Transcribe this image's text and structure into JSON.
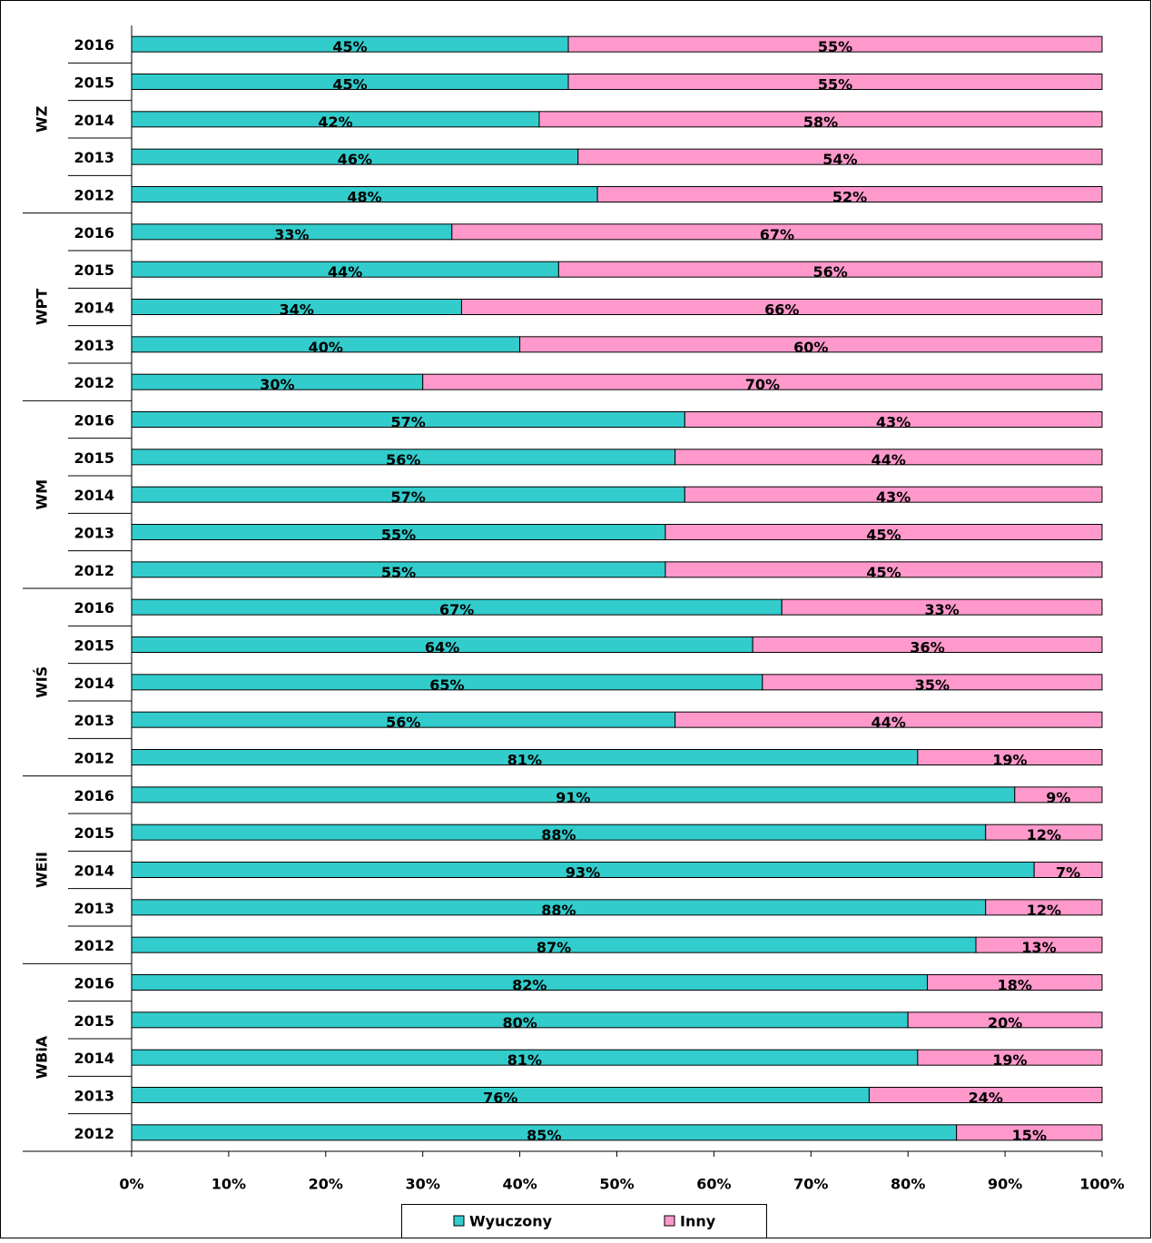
{
  "chart_data": {
    "type": "stacked-barh",
    "groups": [
      "WZ",
      "WPT",
      "WM",
      "WIŚ",
      "WEiI",
      "WBiA"
    ],
    "categories": [
      "2016",
      "2015",
      "2014",
      "2013",
      "2012",
      "2016",
      "2015",
      "2014",
      "2013",
      "2012",
      "2016",
      "2015",
      "2014",
      "2013",
      "2012",
      "2016",
      "2015",
      "2014",
      "2013",
      "2012",
      "2016",
      "2015",
      "2014",
      "2013",
      "2012",
      "2016",
      "2015",
      "2014",
      "2013",
      "2012"
    ],
    "series": [
      {
        "name": "Wyuczony",
        "color": "#33CCCC",
        "values": [
          45,
          45,
          42,
          46,
          48,
          33,
          44,
          34,
          40,
          30,
          57,
          56,
          57,
          55,
          55,
          67,
          64,
          65,
          56,
          81,
          91,
          88,
          93,
          88,
          87,
          82,
          80,
          81,
          76,
          85
        ],
        "value_labels": [
          "45%",
          "45%",
          "42%",
          "46%",
          "48%",
          "33%",
          "44%",
          "34%",
          "40%",
          "30%",
          "57%",
          "56%",
          "57%",
          "55%",
          "55%",
          "67%",
          "64%",
          "65%",
          "56%",
          "81%",
          "91%",
          "88%",
          "93%",
          "88%",
          "87%",
          "82%",
          "80%",
          "81%",
          "76%",
          "85%"
        ]
      },
      {
        "name": "Inny",
        "color": "#FF99CC",
        "values": [
          55,
          55,
          58,
          54,
          52,
          67,
          56,
          66,
          60,
          70,
          43,
          44,
          43,
          45,
          45,
          33,
          36,
          35,
          44,
          19,
          9,
          12,
          7,
          12,
          13,
          18,
          20,
          19,
          24,
          15
        ],
        "value_labels": [
          "55%",
          "55%",
          "58%",
          "54%",
          "52%",
          "67%",
          "56%",
          "66%",
          "60%",
          "70%",
          "43%",
          "44%",
          "43%",
          "45%",
          "45%",
          "33%",
          "36%",
          "35%",
          "44%",
          "19%",
          "9%",
          "12%",
          "7%",
          "12%",
          "13%",
          "18%",
          "20%",
          "19%",
          "24%",
          "15%"
        ]
      }
    ],
    "xlim": [
      0,
      100
    ],
    "xticks": [
      {
        "value": 0,
        "label": "0%"
      },
      {
        "value": 10,
        "label": "10%"
      },
      {
        "value": 20,
        "label": "20%"
      },
      {
        "value": 30,
        "label": "30%"
      },
      {
        "value": 40,
        "label": "40%"
      },
      {
        "value": 50,
        "label": "50%"
      },
      {
        "value": 60,
        "label": "60%"
      },
      {
        "value": 70,
        "label": "70%"
      },
      {
        "value": 80,
        "label": "80%"
      },
      {
        "value": 90,
        "label": "90%"
      },
      {
        "value": 100,
        "label": "100%"
      }
    ],
    "legend": "bottom"
  }
}
